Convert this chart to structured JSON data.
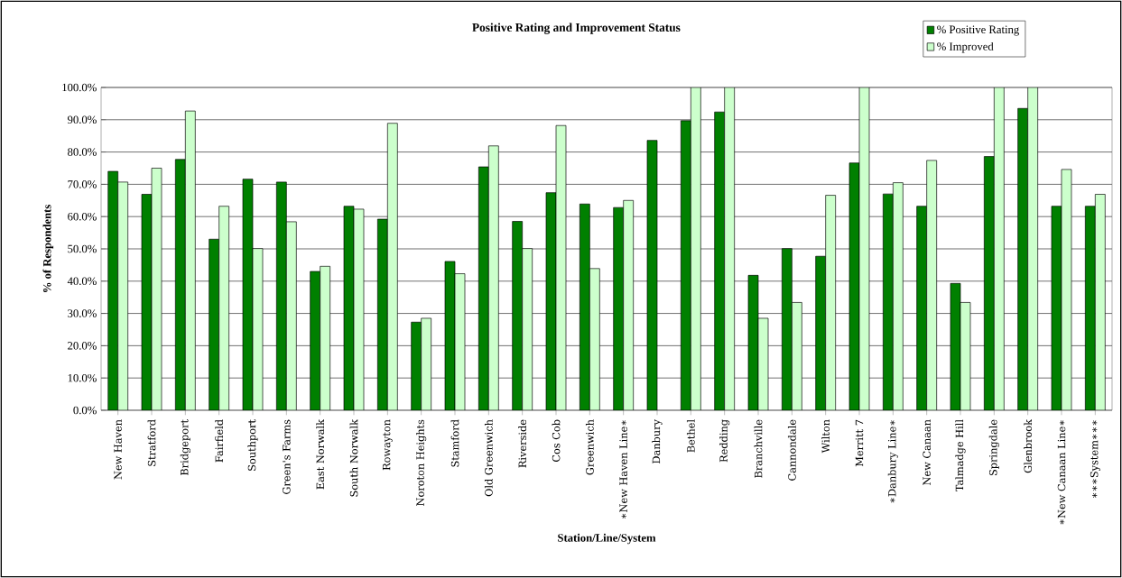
{
  "chart_data": {
    "type": "bar",
    "title": "Positive Rating and Improvement Status",
    "xlabel": "Station/Line/System",
    "ylabel": "% of Respondents",
    "categories": [
      "New Haven",
      "Stratford",
      "Bridgeport",
      "Fairfield",
      "Southport",
      "Green's Farms",
      "East Norwalk",
      "South Norwalk",
      "Rowayton",
      "Noroton Heights",
      "Stamford",
      "Old Greenwich",
      "Riverside",
      "Cos Cob",
      "Greenwich",
      "∗New Haven Line∗",
      "Danbury",
      "Bethel",
      "Redding",
      "Branchville",
      "Cannondale",
      "Wilton",
      "Merritt 7",
      "∗Danbury Line∗",
      "New Canaan",
      "Talmadge Hill",
      "Springdale",
      "Glenbrook",
      "∗New Canaan Line∗",
      "∗∗∗System∗∗∗"
    ],
    "series": [
      {
        "name": "% Positive Rating",
        "color": "#008000",
        "values": [
          74.0,
          66.9,
          77.7,
          53.0,
          71.6,
          70.7,
          43.0,
          63.2,
          59.2,
          27.3,
          46.1,
          75.4,
          58.5,
          67.4,
          63.9,
          62.8,
          83.6,
          89.7,
          92.4,
          41.8,
          50.1,
          47.7,
          76.6,
          67.0,
          63.2,
          39.3,
          78.6,
          93.5,
          63.2,
          63.2
        ]
      },
      {
        "name": "% Improved",
        "color": "#ccffcc",
        "values": [
          70.7,
          75.0,
          92.7,
          63.2,
          50.1,
          58.4,
          44.6,
          62.3,
          88.9,
          28.5,
          42.3,
          81.9,
          50.1,
          88.2,
          43.9,
          65.0,
          null,
          100,
          100,
          28.5,
          33.4,
          66.6,
          100,
          70.5,
          77.4,
          33.4,
          100,
          100,
          74.6,
          66.9
        ]
      }
    ],
    "ylim": [
      0,
      100
    ],
    "yticks": [
      {
        "value": 0,
        "label": "0.0%"
      },
      {
        "value": 10,
        "label": "10.0%"
      },
      {
        "value": 20,
        "label": "20.0%"
      },
      {
        "value": 30,
        "label": "30.0%"
      },
      {
        "value": 40,
        "label": "40.0%"
      },
      {
        "value": 50,
        "label": "50.0%"
      },
      {
        "value": 60,
        "label": "60.0%"
      },
      {
        "value": 70,
        "label": "70.0%"
      },
      {
        "value": 80,
        "label": "80.0%"
      },
      {
        "value": 90,
        "label": "90.0%"
      },
      {
        "value": 100,
        "label": "100.0%"
      }
    ],
    "grid": "y",
    "legend": "top right"
  }
}
